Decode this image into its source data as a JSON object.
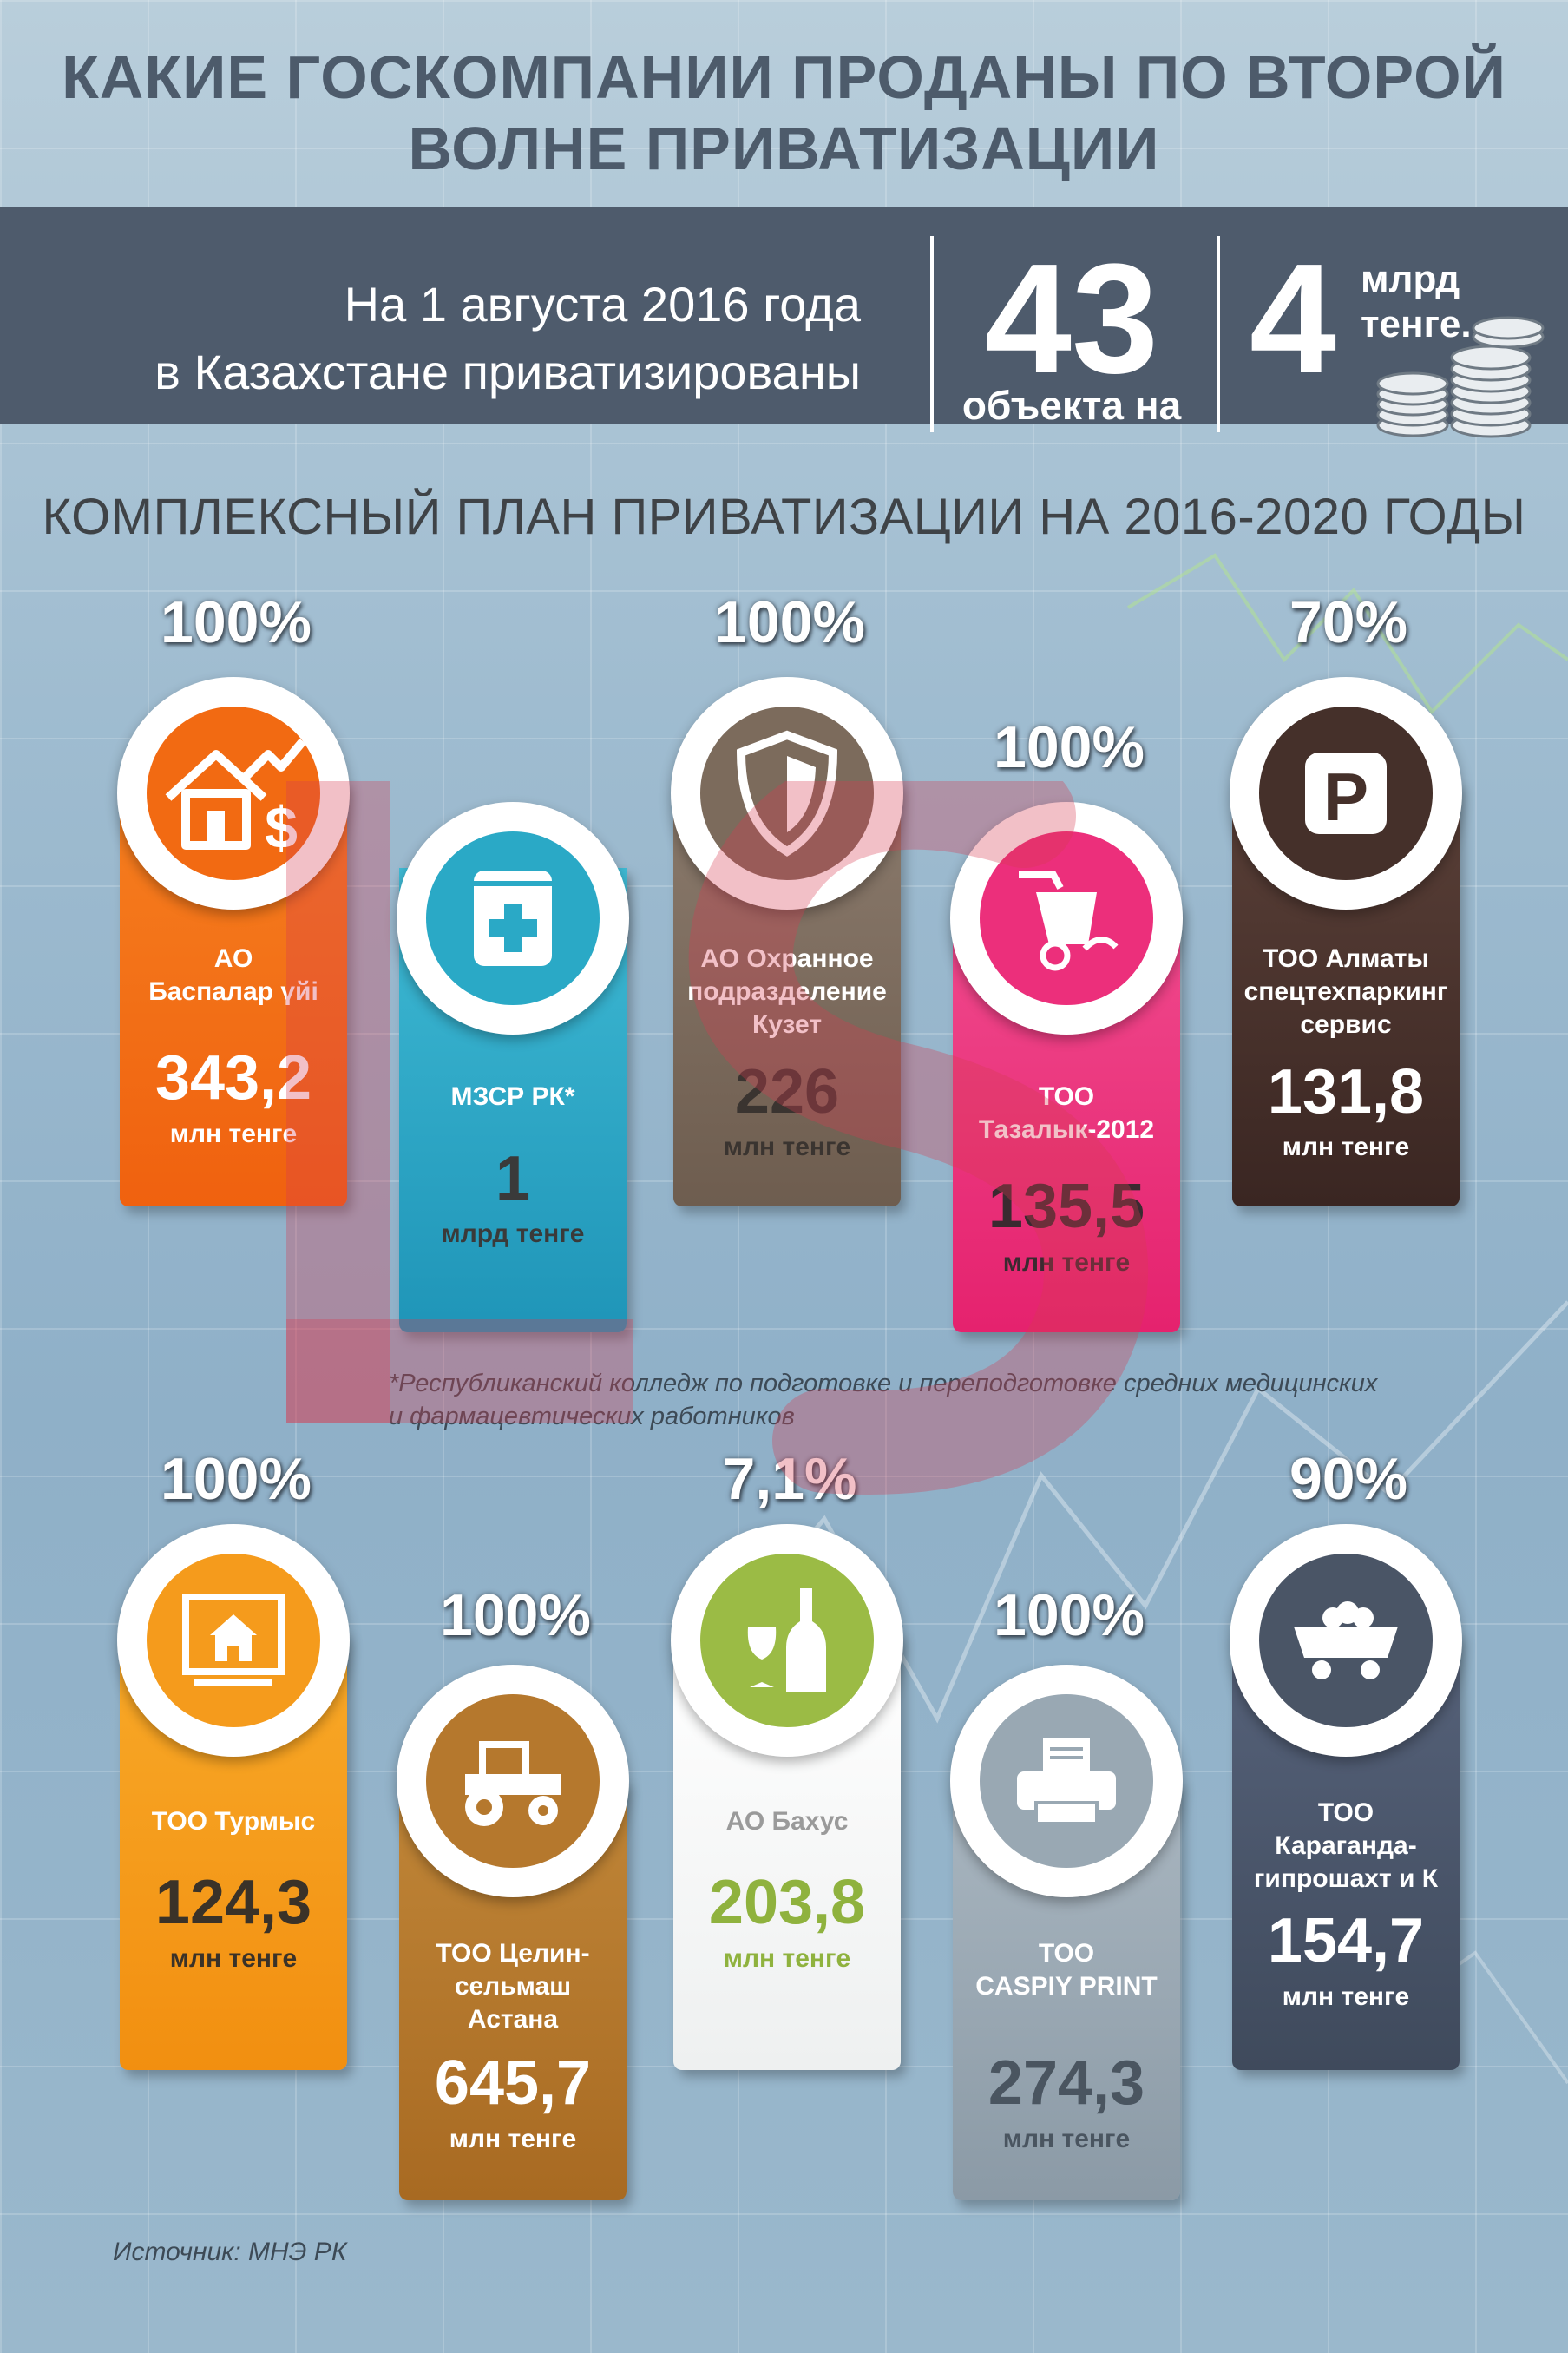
{
  "title_line1": "КАКИЕ ГОСКОМПАНИИ ПРОДАНЫ ПО ВТОРОЙ",
  "title_line2": "ВОЛНЕ ПРИВАТИЗАЦИИ",
  "summary": {
    "line1": "На 1 августа 2016 года",
    "line2": "в Казахстане приватизированы",
    "count": "43",
    "count_label": "объекта на",
    "amount": "4",
    "amount_unit_line1": "млрд",
    "amount_unit_line2": "тенге."
  },
  "subtitle": "КОМПЛЕКСНЫЙ ПЛАН ПРИВАТИЗАЦИИ НА 2016-2020 ГОДЫ",
  "companies": [
    {
      "pct": "100%",
      "name": [
        "АО",
        "Баспалар үйі"
      ],
      "value": "343,2",
      "unit": "млн тенге",
      "color": "#f26a12",
      "icon": "house-dollar-icon"
    },
    {
      "pct": "100%",
      "name": [
        "МЗСР РК*"
      ],
      "value": "1",
      "unit": "млрд тенге",
      "color": "#2aa9c6",
      "icon": "medical-book-icon"
    },
    {
      "pct": "100%",
      "name": [
        "АО Охранное",
        "подразделение",
        "Кузет"
      ],
      "value": "226",
      "unit": "млн тенге",
      "color": "#7c6b5c",
      "icon": "shield-icon"
    },
    {
      "pct": "100%",
      "name": [
        "ТОО",
        "Тазалык-2012"
      ],
      "value": "135,5",
      "unit": "млн тенге",
      "color": "#ec2f7b",
      "icon": "trash-cart-icon"
    },
    {
      "pct": "70%",
      "name": [
        "ТОО Алматы",
        "спецтехпаркинг",
        "сервис"
      ],
      "value": "131,8",
      "unit": "млн тенге",
      "color": "#45302a",
      "icon": "parking-icon"
    },
    {
      "pct": "100%",
      "name": [
        "ТОО Турмыс"
      ],
      "value": "124,3",
      "unit": "млн тенге",
      "color": "#f59b1c",
      "icon": "house-monitor-icon"
    },
    {
      "pct": "100%",
      "name": [
        "ТОО Целин-",
        "сельмаш",
        "Астана"
      ],
      "value": "645,7",
      "unit": "млн тенге",
      "color": "#b5782d",
      "icon": "tractor-icon"
    },
    {
      "pct": "7,1%",
      "name": [
        "АО Бахус"
      ],
      "value": "203,8",
      "unit": "млн тенге",
      "color": "#ffffff",
      "icon": "wine-bottle-icon"
    },
    {
      "pct": "100%",
      "name": [
        "ТОО",
        "CASPIY PRINT"
      ],
      "value": "274,3",
      "unit": "млн тенге",
      "color": "#99a8b3",
      "icon": "printer-icon"
    },
    {
      "pct": "90%",
      "name": [
        "ТОО",
        "Караганда-",
        "гипрошахт и К"
      ],
      "value": "154,7",
      "unit": "млн тенге",
      "color": "#4a5566",
      "icon": "mine-cart-icon"
    }
  ],
  "footnote_line1": "*Республиканский колледж по подготовке и переподготовке средних медицинских",
  "footnote_line2": "и фармацевтических работников",
  "source": "Источник: МНЭ РК",
  "watermark_text": "LS"
}
